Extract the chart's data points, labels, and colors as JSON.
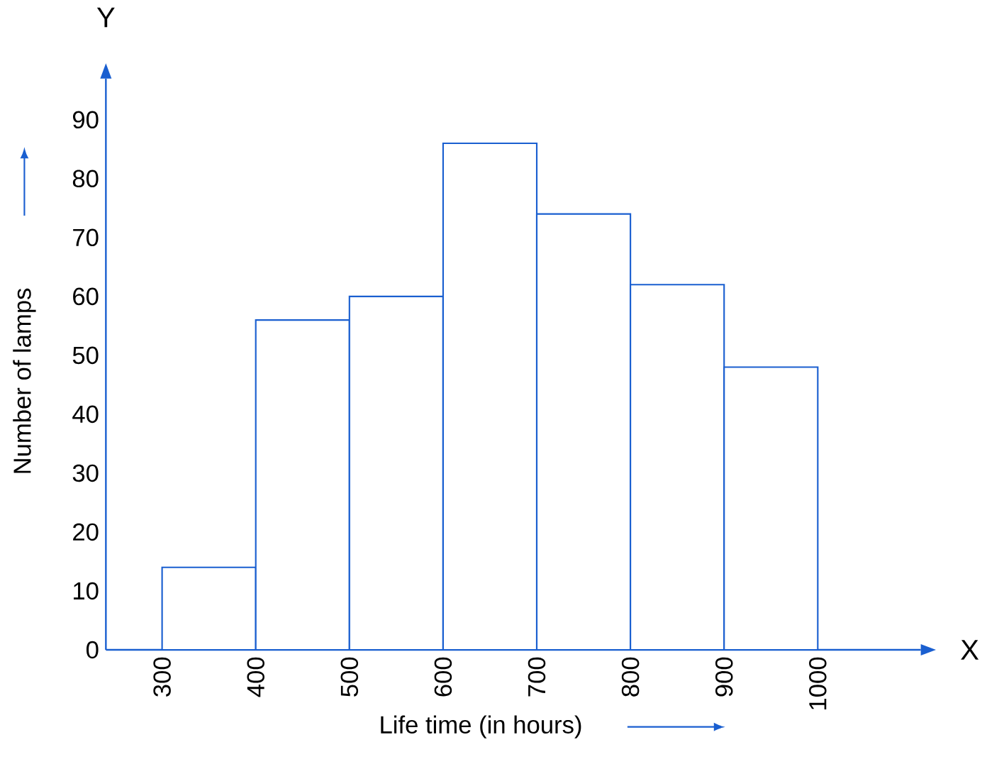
{
  "chart_data": {
    "type": "histogram",
    "xlabel": "Life time (in hours)",
    "ylabel": "Number of lamps",
    "annotations": [
      "X",
      "Y"
    ],
    "bins": [
      300,
      400,
      500,
      600,
      700,
      800,
      900,
      1000
    ],
    "values": [
      14,
      56,
      60,
      86,
      74,
      62,
      48
    ],
    "color": "#ffffff",
    "xlim": [
      240,
      1110
    ],
    "ylim": [
      0,
      97
    ],
    "xticks": [
      300,
      400,
      500,
      600,
      700,
      800,
      900,
      1000
    ],
    "yticks": [
      0,
      10,
      20,
      30,
      40,
      50,
      60,
      70,
      80,
      90
    ],
    "grid": false
  }
}
